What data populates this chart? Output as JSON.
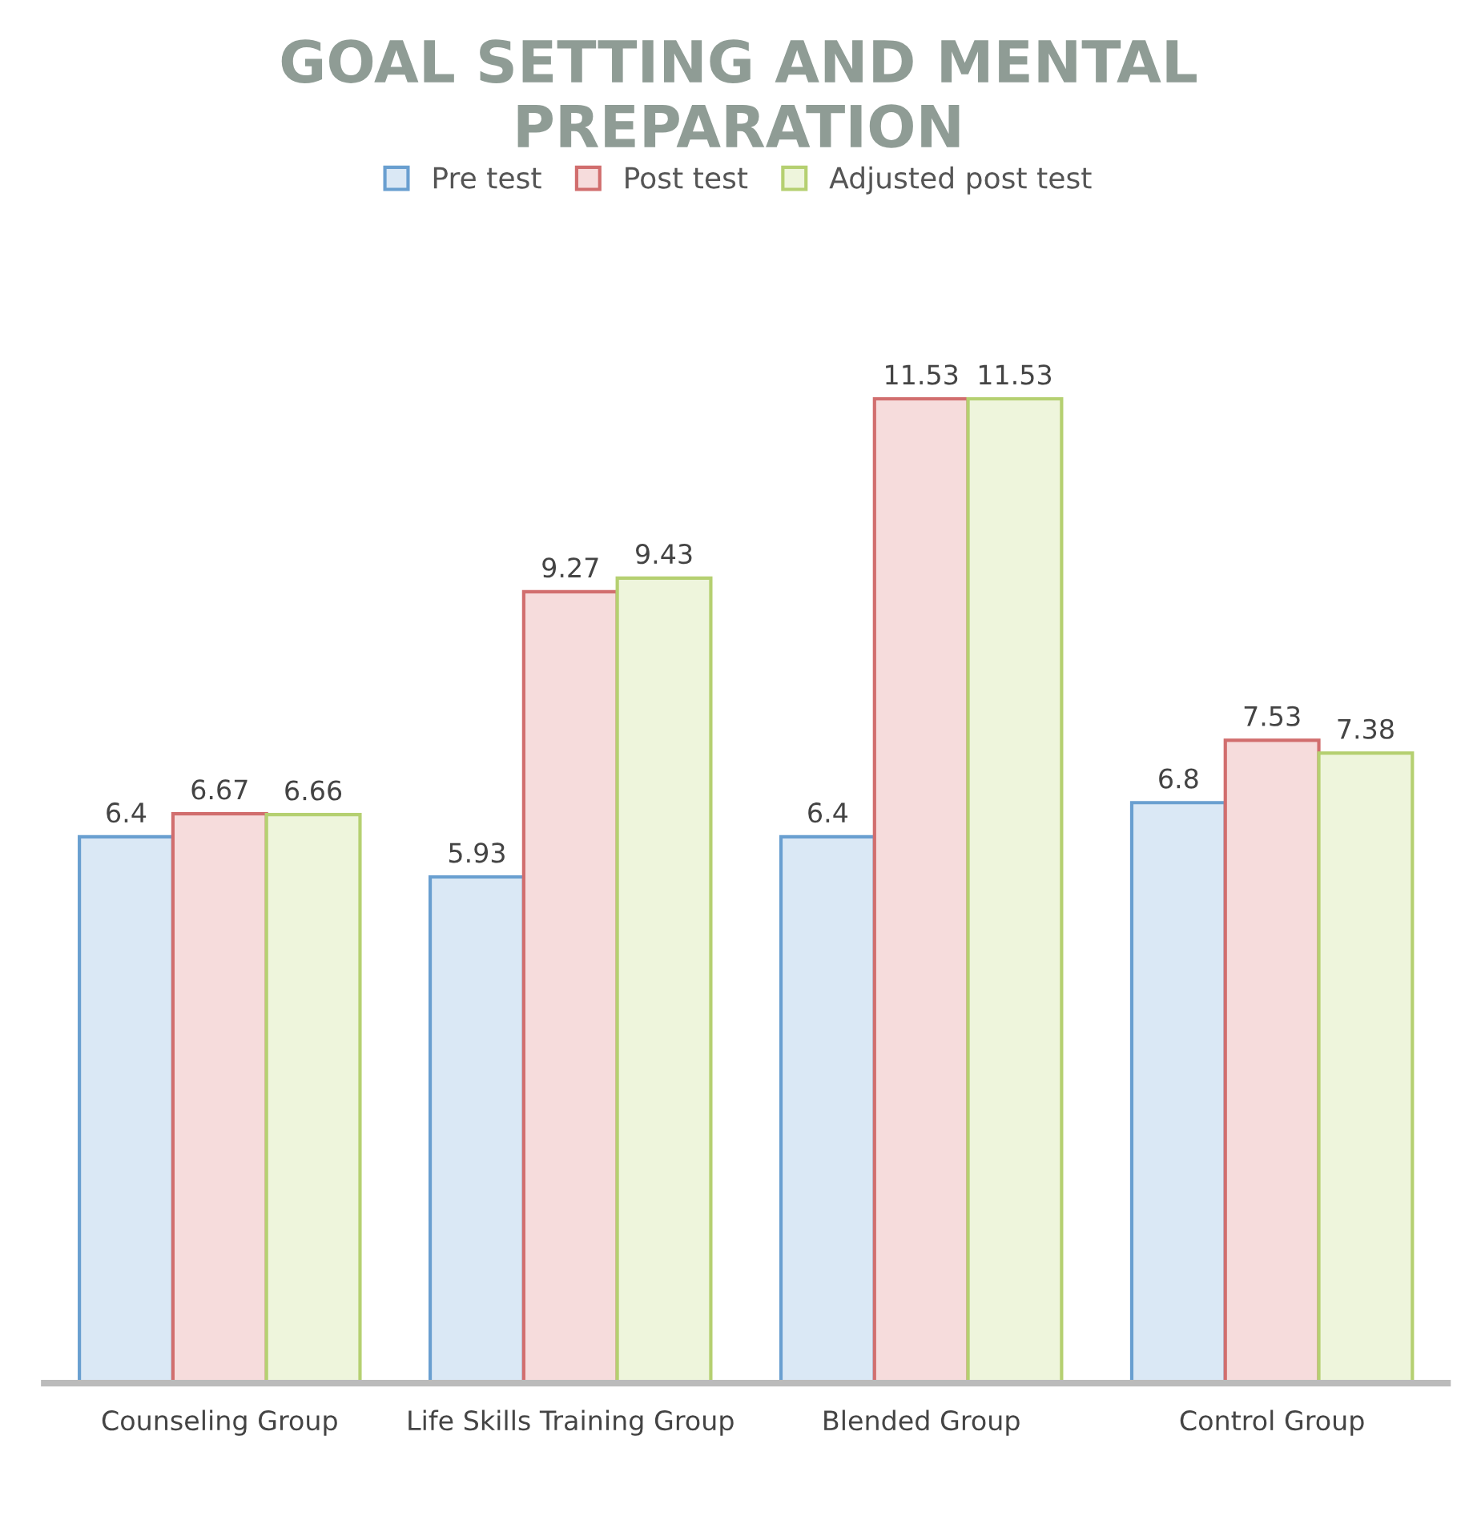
{
  "chart_data": {
    "type": "bar",
    "title": "GOAL SETTING AND MENTAL PREPARATION",
    "categories": [
      "Counseling Group",
      "Life Skills Training Group",
      "Blended Group",
      "Control Group"
    ],
    "series": [
      {
        "name": "Pre test",
        "color": "#dae8f5",
        "values": [
          6.4,
          5.93,
          6.4,
          6.8
        ]
      },
      {
        "name": "Post test",
        "color": "#f6dcdc",
        "values": [
          6.67,
          9.27,
          11.53,
          7.53
        ]
      },
      {
        "name": "Adjusted post test",
        "color": "#eef5dc",
        "values": [
          6.66,
          9.43,
          11.53,
          7.38
        ]
      }
    ],
    "data_labels": true,
    "legend": "top",
    "grid": false,
    "tick_labels": "x"
  }
}
